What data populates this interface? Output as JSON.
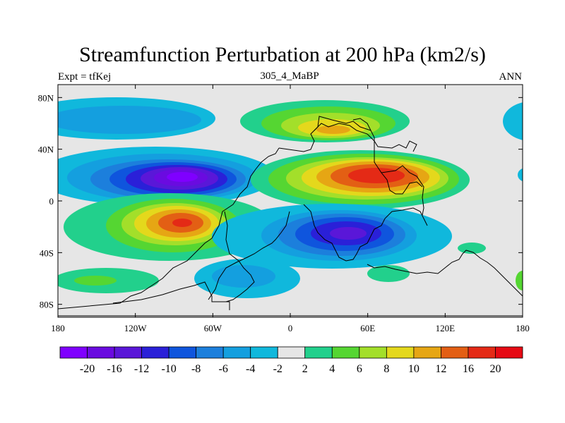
{
  "title": "Streamfunction Perturbation at 200 hPa (km2/s)",
  "left_label": "Expt = tfKej",
  "center_label": "305_4_MaBP",
  "right_label": "ANN",
  "chart_data": {
    "type": "heatmap",
    "title": "Streamfunction Perturbation at 200 hPa (km2/s)",
    "x_ticks": [
      "180",
      "120W",
      "60W",
      "0",
      "60E",
      "120E",
      "180"
    ],
    "x_tick_values": [
      -180,
      -120,
      -60,
      0,
      60,
      120,
      180
    ],
    "y_ticks": [
      "80N",
      "40N",
      "0",
      "40S",
      "80S"
    ],
    "y_tick_values": [
      80,
      40,
      0,
      -40,
      -80
    ],
    "xlim": [
      -180,
      180
    ],
    "ylim": [
      -90,
      90
    ],
    "levels": [
      "-20",
      "-16",
      "-12",
      "-10",
      "-8",
      "-6",
      "-4",
      "-2",
      "2",
      "4",
      "6",
      "8",
      "10",
      "12",
      "16",
      "20"
    ],
    "colors": [
      "#7f00ff",
      "#6a0be0",
      "#5a17d8",
      "#2a20d8",
      "#0f55dd",
      "#1c7fdc",
      "#149fdf",
      "#10b8dc",
      "#e6e6e6",
      "#22d08c",
      "#55d632",
      "#a3df2a",
      "#e4d81c",
      "#e6a614",
      "#e35f14",
      "#e42a16",
      "#e60a14"
    ],
    "features": [
      {
        "name": "negative-center",
        "lon": -88,
        "lat": 20,
        "value": -20
      },
      {
        "name": "positive-center",
        "lon": -82,
        "lat": -17,
        "value": 16
      },
      {
        "name": "positive-center",
        "lon": 65,
        "lat": 18,
        "value": 20
      },
      {
        "name": "positive-center",
        "lon": 28,
        "lat": 57,
        "value": 10
      },
      {
        "name": "negative-center",
        "lon": 48,
        "lat": -25,
        "value": -12
      },
      {
        "name": "negative-center",
        "lon": -160,
        "lat": 62,
        "value": -6
      },
      {
        "name": "negative-center",
        "lon": -22,
        "lat": -62,
        "value": -6
      },
      {
        "name": "positive-center",
        "lon": -140,
        "lat": -62,
        "value": 6
      }
    ]
  }
}
